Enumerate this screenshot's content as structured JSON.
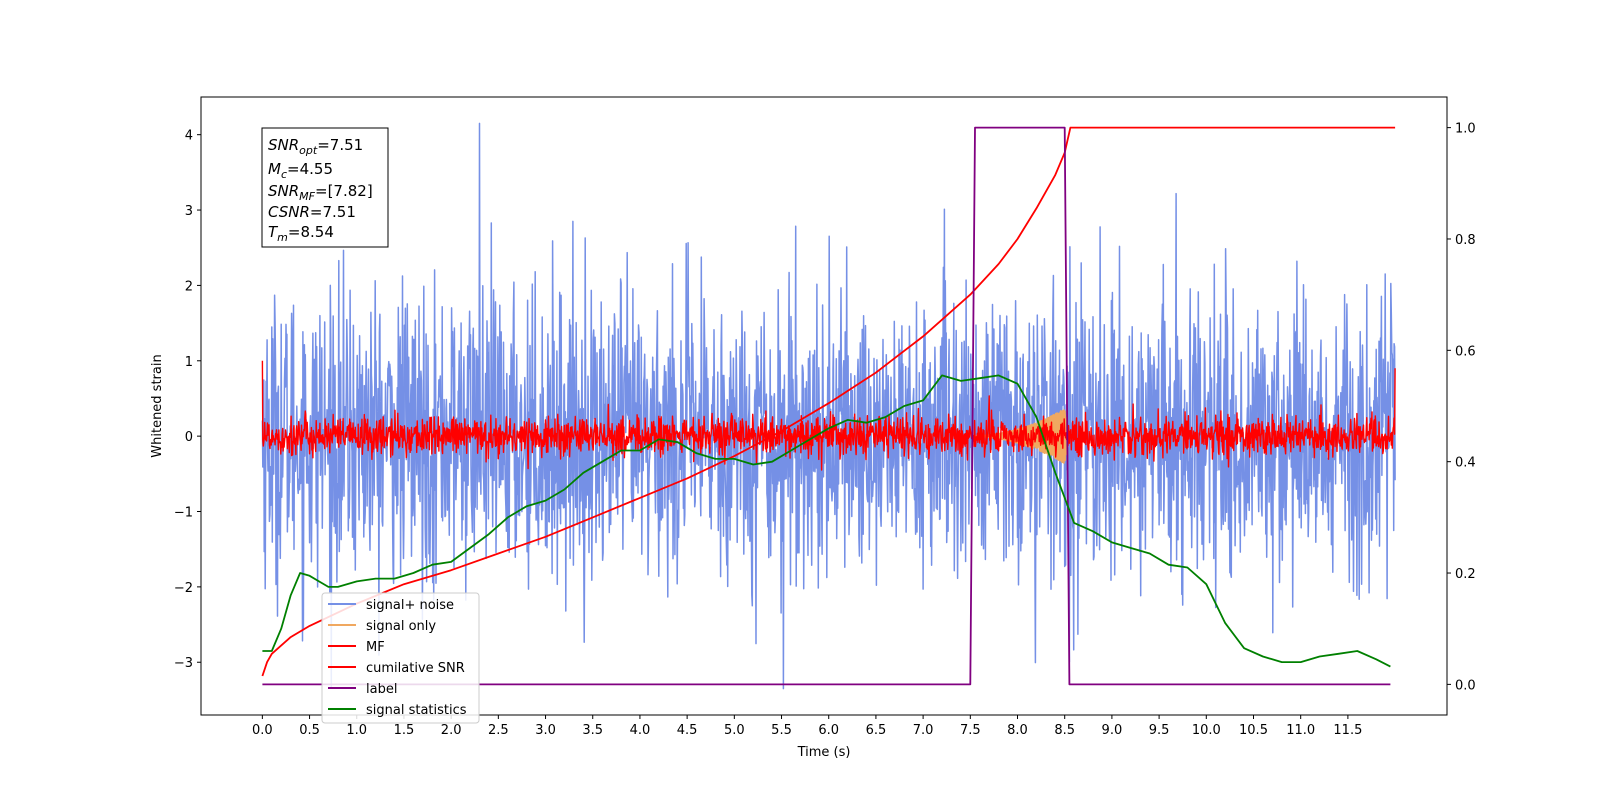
{
  "chart_data": {
    "type": "line",
    "xlabel": "Time (s)",
    "ylabel_left": "Whitened strain",
    "ylabel_right": "",
    "xlim": [
      -0.65,
      12.55
    ],
    "ylim_left": [
      -3.7,
      4.5
    ],
    "ylim_right": [
      -0.055,
      1.055
    ],
    "x_ticks": [
      "0.0",
      "0.5",
      "1.0",
      "1.5",
      "2.0",
      "2.5",
      "3.0",
      "3.5",
      "4.0",
      "4.5",
      "5.0",
      "5.5",
      "6.0",
      "6.5",
      "7.0",
      "7.5",
      "8.0",
      "8.5",
      "9.0",
      "9.5",
      "10.0",
      "10.5",
      "11.0",
      "11.5"
    ],
    "y_ticks_left": [
      "−3",
      "−2",
      "−1",
      "0",
      "1",
      "2",
      "3",
      "4"
    ],
    "y_ticks_right": [
      "0.0",
      "0.2",
      "0.4",
      "0.6",
      "0.8",
      "1.0"
    ],
    "grid": false,
    "legend_position": "lower-left",
    "legend": [
      "signal+ noise",
      "signal only",
      "MF",
      "cumilative SNR",
      "label",
      "signal statistics"
    ],
    "colors": {
      "signal_noise": "#7590e6",
      "signal_only": "#f0a860",
      "mf": "#ff0000",
      "cumulative_snr": "#ff0000",
      "label": "#800080",
      "signal_statistics": "#008000"
    },
    "annotation": {
      "snr_opt": {
        "sym": "SNR",
        "sub": "opt",
        "value": "=7.51"
      },
      "mc": {
        "sym": "M",
        "sub": "c",
        "value": "=4.55"
      },
      "snr_mf": {
        "sym": "SNR",
        "sub": "MF",
        "value": "=[7.82]"
      },
      "csnr": {
        "sym": "CSNR",
        "sub": "",
        "value": "=7.51"
      },
      "tm": {
        "sym": "T",
        "sub": "m",
        "value": "=8.54"
      }
    },
    "series": [
      {
        "name": "signal+ noise",
        "axis": "left",
        "kind": "noise",
        "x_range": [
          0.0,
          12.0
        ],
        "sigma": 0.95,
        "peak_max": 4.15,
        "peak_min": -3.35
      },
      {
        "name": "signal only",
        "axis": "left",
        "kind": "chirp",
        "x_range": [
          7.5,
          8.55
        ],
        "peak_amplitude": 0.4
      },
      {
        "name": "MF",
        "axis": "left",
        "kind": "noise",
        "x_range": [
          0.0,
          12.0
        ],
        "sigma": 0.13,
        "start_value": 1.0,
        "end_value": 0.9
      },
      {
        "name": "cumilative SNR",
        "axis": "right",
        "x": [
          0.0,
          0.05,
          0.1,
          0.3,
          0.5,
          1.0,
          1.5,
          2.0,
          2.5,
          3.0,
          3.5,
          4.0,
          4.5,
          5.0,
          5.5,
          6.0,
          6.5,
          7.0,
          7.5,
          7.8,
          8.0,
          8.2,
          8.4,
          8.5,
          8.56,
          9.0,
          10.0,
          11.0,
          12.0
        ],
        "y": [
          0.015,
          0.04,
          0.055,
          0.085,
          0.105,
          0.145,
          0.18,
          0.205,
          0.235,
          0.265,
          0.3,
          0.335,
          0.37,
          0.41,
          0.455,
          0.505,
          0.56,
          0.625,
          0.7,
          0.755,
          0.8,
          0.855,
          0.915,
          0.955,
          1.0,
          1.0,
          1.0,
          1.0,
          1.0
        ]
      },
      {
        "name": "label",
        "axis": "right",
        "x": [
          0.0,
          7.5,
          7.55,
          8.5,
          8.55,
          11.95
        ],
        "y": [
          0.0,
          0.0,
          1.0,
          1.0,
          0.0,
          0.0
        ]
      },
      {
        "name": "signal statistics",
        "axis": "right",
        "x": [
          0.0,
          0.1,
          0.2,
          0.3,
          0.4,
          0.5,
          0.6,
          0.7,
          0.8,
          1.0,
          1.2,
          1.4,
          1.6,
          1.8,
          2.0,
          2.2,
          2.4,
          2.6,
          2.8,
          3.0,
          3.2,
          3.4,
          3.6,
          3.8,
          4.0,
          4.2,
          4.4,
          4.6,
          4.8,
          5.0,
          5.2,
          5.4,
          5.6,
          5.8,
          6.0,
          6.2,
          6.4,
          6.6,
          6.8,
          7.0,
          7.2,
          7.4,
          7.6,
          7.8,
          8.0,
          8.2,
          8.4,
          8.6,
          8.8,
          9.0,
          9.2,
          9.4,
          9.6,
          9.8,
          10.0,
          10.2,
          10.4,
          10.6,
          10.8,
          11.0,
          11.2,
          11.4,
          11.6,
          11.8,
          11.95
        ],
        "y": [
          0.06,
          0.06,
          0.1,
          0.16,
          0.2,
          0.195,
          0.185,
          0.175,
          0.175,
          0.185,
          0.19,
          0.19,
          0.2,
          0.215,
          0.22,
          0.245,
          0.27,
          0.3,
          0.32,
          0.33,
          0.35,
          0.38,
          0.4,
          0.42,
          0.42,
          0.44,
          0.435,
          0.415,
          0.405,
          0.405,
          0.395,
          0.4,
          0.42,
          0.44,
          0.46,
          0.475,
          0.47,
          0.48,
          0.5,
          0.51,
          0.555,
          0.545,
          0.55,
          0.555,
          0.54,
          0.48,
          0.38,
          0.29,
          0.275,
          0.255,
          0.245,
          0.235,
          0.215,
          0.21,
          0.18,
          0.11,
          0.065,
          0.05,
          0.04,
          0.04,
          0.05,
          0.055,
          0.06,
          0.045,
          0.032
        ]
      }
    ]
  }
}
